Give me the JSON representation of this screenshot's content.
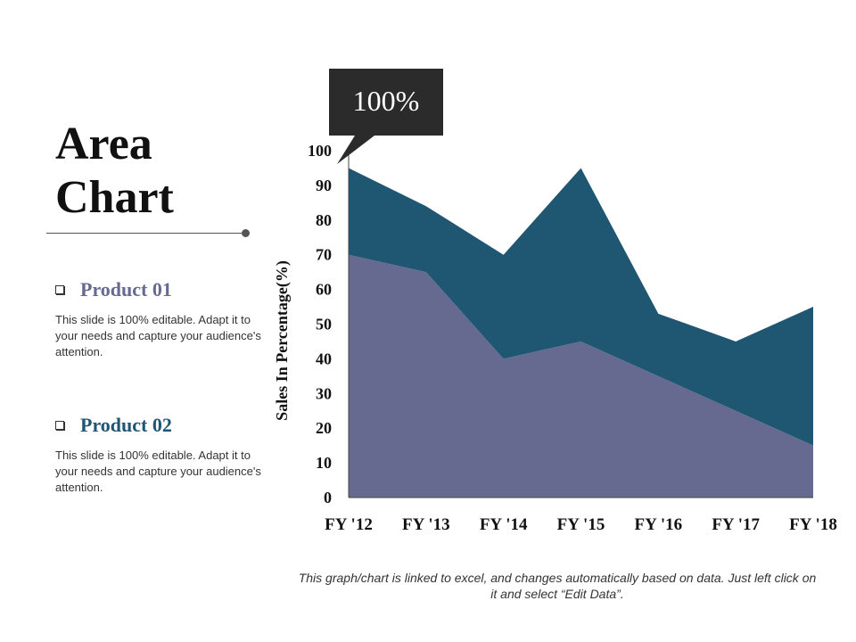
{
  "slide": {
    "title_line1": "Area",
    "title_line2": "Chart",
    "footer": "This graph/chart is linked to excel, and changes automatically based on data. Just left click on it and select “Edit Data”."
  },
  "products": [
    {
      "name": "Product 01",
      "description": "This slide is 100% editable. Adapt it to your needs and capture your audience's attention.",
      "color": "#666a91"
    },
    {
      "name": "Product 02",
      "description": "This slide is 100% editable. Adapt it to your needs and capture your audience's attention.",
      "color": "#1f5672"
    }
  ],
  "callout": {
    "text": "100%",
    "bg": "#2b2b2b"
  },
  "chart_data": {
    "type": "area",
    "stacked": true,
    "categories": [
      "FY '12",
      "FY '13",
      "FY '14",
      "FY '15",
      "FY '16",
      "FY '17",
      "FY '18"
    ],
    "series": [
      {
        "name": "Product 01",
        "values": [
          70,
          65,
          40,
          45,
          35,
          25,
          15
        ],
        "color": "#666a91"
      },
      {
        "name": "Product 02",
        "values": [
          25,
          19,
          30,
          50,
          18,
          20,
          40
        ],
        "color": "#1f5672"
      }
    ],
    "ylabel": "Sales In Percentage(%)",
    "ylim": [
      0,
      100
    ],
    "yticks": [
      0,
      10,
      20,
      30,
      40,
      50,
      60,
      70,
      80,
      90,
      100
    ],
    "grid": false
  }
}
